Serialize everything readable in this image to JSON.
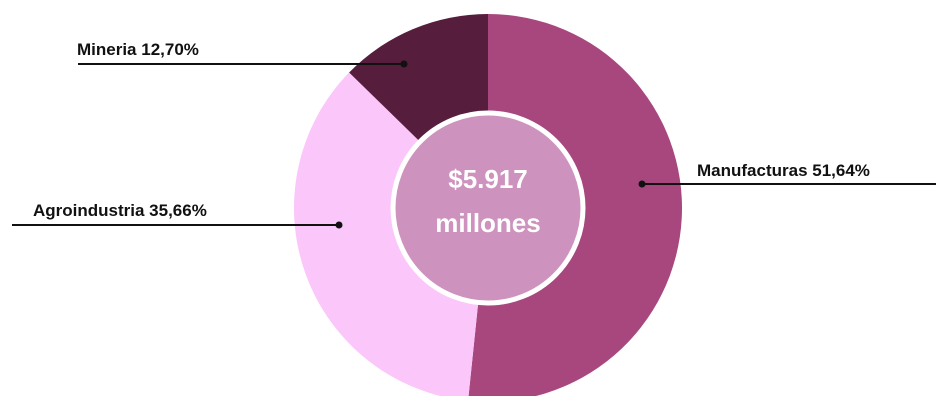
{
  "chart_data": {
    "type": "pie",
    "variant": "donut",
    "center_label": [
      "$5.917",
      "millones"
    ],
    "slices": [
      {
        "name": "Manufacturas",
        "value": 51.64,
        "label": "Manufacturas 51,64%",
        "color": "#a8477e"
      },
      {
        "name": "Agroindustria",
        "value": 35.66,
        "label": "Agroindustria 35,66%",
        "color": "#fbc6fa"
      },
      {
        "name": "Mineria",
        "value": 12.7,
        "label": "Mineria 12,70%",
        "color": "#561d3d"
      }
    ],
    "center_color": "#cd92bd",
    "leader_line_color": "#111111",
    "background": "#ffffff"
  }
}
